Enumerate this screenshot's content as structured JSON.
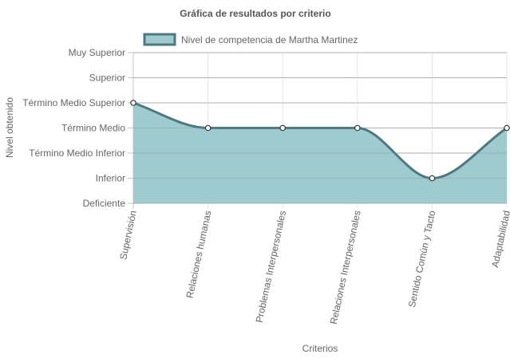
{
  "chart_data": {
    "type": "area",
    "title": "Gráfica de resultados por criterio",
    "xlabel": "Criterios",
    "ylabel": "Nivel obtenido",
    "y_levels": [
      "Deficiente",
      "Inferior",
      "Término Medio Inferior",
      "Término Medio",
      "Término Medio Superior",
      "Superior",
      "Muy Superior"
    ],
    "ylim": [
      0,
      6
    ],
    "categories": [
      "Supervisión",
      "Relaciones humanas",
      "Problemas Interpersonales",
      "Relaciones Interpersonales",
      "Sentido Común y Tacto",
      "Adaptabilidad"
    ],
    "series": [
      {
        "name": "Nivel de competencia de Martha Martinez",
        "values": [
          4,
          3,
          3,
          3,
          1,
          3
        ],
        "fill_color": "#9fcbcf",
        "line_color": "#4e7780"
      }
    ],
    "grid": true,
    "legend_position": "top"
  }
}
